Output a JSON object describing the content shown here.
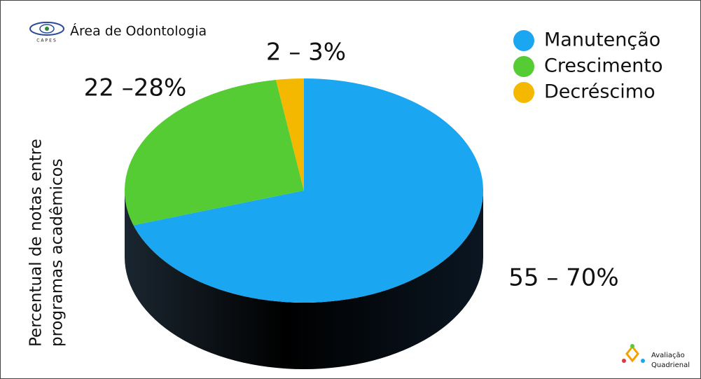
{
  "chart_data": {
    "type": "pie",
    "title": "Área de Odontologia",
    "logo_text": "CAPES",
    "y_label": [
      "Percentual de notas entre",
      "programas acadêmicos"
    ],
    "categories": [
      "Manutenção",
      "Crescimento",
      "Decréscimo"
    ],
    "values": [
      70,
      27.5,
      2.5
    ],
    "value_labels": [
      "55 – 70%",
      "22 –28%",
      "2 – 3%"
    ],
    "colors": [
      "#1aa6f0",
      "#55cc33",
      "#f5b800"
    ],
    "legend": "top-right",
    "footer": [
      "Avaliação",
      "Quadrienal"
    ]
  }
}
